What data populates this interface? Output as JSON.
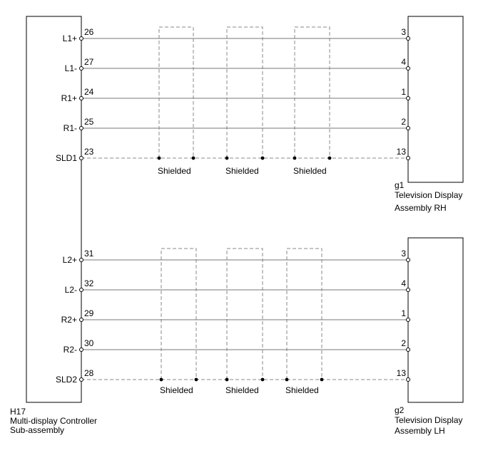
{
  "colors": {
    "line": "#000000",
    "wire": "#777777",
    "shield": "#888888",
    "background": "#ffffff"
  },
  "controller": {
    "code": "H17",
    "name_line1": "Multi-display Controller",
    "name_line2": "Sub-assembly"
  },
  "display_rh": {
    "code": "g1",
    "name_line1": "Television Display",
    "name_line2": "Assembly RH"
  },
  "display_lh": {
    "code": "g2",
    "name_line1": "Television Display",
    "name_line2": "Assembly LH"
  },
  "groups": [
    {
      "key": "rh",
      "wires": [
        {
          "signal": "L1+",
          "controller_pin": "26",
          "display_pin": "3"
        },
        {
          "signal": "L1-",
          "controller_pin": "27",
          "display_pin": "4"
        },
        {
          "signal": "R1+",
          "controller_pin": "24",
          "display_pin": "1"
        },
        {
          "signal": "R1-",
          "controller_pin": "25",
          "display_pin": "2"
        }
      ],
      "shield_wire": {
        "signal": "SLD1",
        "controller_pin": "23",
        "display_pin": "13"
      },
      "shield_labels": [
        "Shielded",
        "Shielded",
        "Shielded"
      ]
    },
    {
      "key": "lh",
      "wires": [
        {
          "signal": "L2+",
          "controller_pin": "31",
          "display_pin": "3"
        },
        {
          "signal": "L2-",
          "controller_pin": "32",
          "display_pin": "4"
        },
        {
          "signal": "R2+",
          "controller_pin": "29",
          "display_pin": "1"
        },
        {
          "signal": "R2-",
          "controller_pin": "30",
          "display_pin": "2"
        }
      ],
      "shield_wire": {
        "signal": "SLD2",
        "controller_pin": "28",
        "display_pin": "13"
      },
      "shield_labels": [
        "Shielded",
        "Shielded",
        "Shielded"
      ]
    }
  ]
}
